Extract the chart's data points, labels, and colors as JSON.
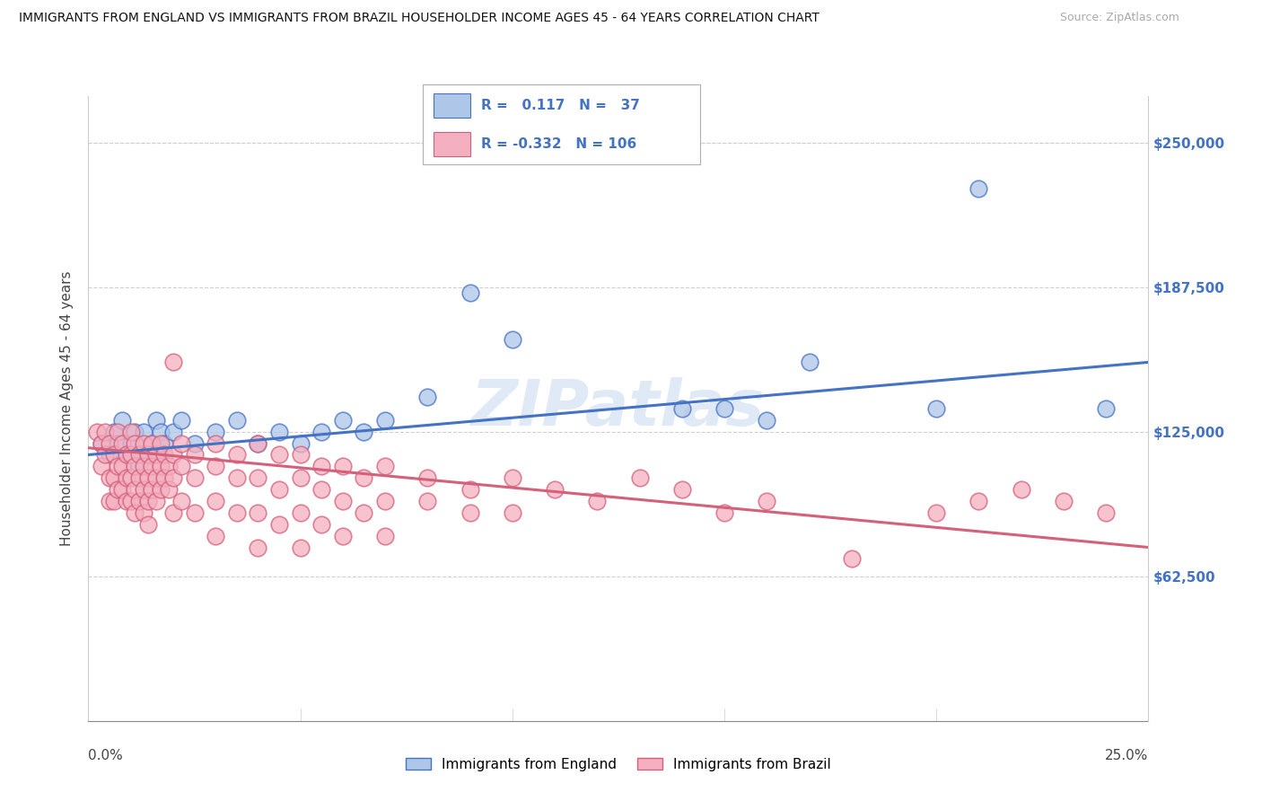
{
  "title": "IMMIGRANTS FROM ENGLAND VS IMMIGRANTS FROM BRAZIL HOUSEHOLDER INCOME AGES 45 - 64 YEARS CORRELATION CHART",
  "source": "Source: ZipAtlas.com",
  "ylabel": "Householder Income Ages 45 - 64 years",
  "yticks": [
    0,
    62500,
    125000,
    187500,
    250000
  ],
  "ytick_labels": [
    "",
    "$62,500",
    "$125,000",
    "$187,500",
    "$250,000"
  ],
  "xticks": [
    0.0,
    0.05,
    0.1,
    0.15,
    0.2,
    0.25
  ],
  "xlim": [
    0.0,
    0.25
  ],
  "ylim": [
    0,
    270000
  ],
  "england_R": 0.117,
  "england_N": 37,
  "brazil_R": -0.332,
  "brazil_N": 106,
  "england_color": "#aec6e8",
  "brazil_color": "#f4afc0",
  "england_line_color": "#4472c4",
  "brazil_line_color": "#d4607a",
  "england_scatter": [
    [
      0.003,
      120000
    ],
    [
      0.005,
      115000
    ],
    [
      0.006,
      125000
    ],
    [
      0.007,
      120000
    ],
    [
      0.008,
      130000
    ],
    [
      0.009,
      115000
    ],
    [
      0.01,
      120000
    ],
    [
      0.011,
      125000
    ],
    [
      0.012,
      110000
    ],
    [
      0.013,
      125000
    ],
    [
      0.014,
      115000
    ],
    [
      0.015,
      120000
    ],
    [
      0.016,
      130000
    ],
    [
      0.017,
      125000
    ],
    [
      0.018,
      120000
    ],
    [
      0.02,
      125000
    ],
    [
      0.022,
      130000
    ],
    [
      0.025,
      120000
    ],
    [
      0.03,
      125000
    ],
    [
      0.035,
      130000
    ],
    [
      0.04,
      120000
    ],
    [
      0.045,
      125000
    ],
    [
      0.05,
      120000
    ],
    [
      0.055,
      125000
    ],
    [
      0.06,
      130000
    ],
    [
      0.065,
      125000
    ],
    [
      0.07,
      130000
    ],
    [
      0.08,
      140000
    ],
    [
      0.09,
      185000
    ],
    [
      0.1,
      165000
    ],
    [
      0.14,
      135000
    ],
    [
      0.15,
      135000
    ],
    [
      0.16,
      130000
    ],
    [
      0.17,
      155000
    ],
    [
      0.2,
      135000
    ],
    [
      0.21,
      230000
    ],
    [
      0.24,
      135000
    ]
  ],
  "brazil_scatter": [
    [
      0.002,
      125000
    ],
    [
      0.003,
      120000
    ],
    [
      0.003,
      110000
    ],
    [
      0.004,
      125000
    ],
    [
      0.004,
      115000
    ],
    [
      0.005,
      120000
    ],
    [
      0.005,
      105000
    ],
    [
      0.005,
      95000
    ],
    [
      0.006,
      115000
    ],
    [
      0.006,
      105000
    ],
    [
      0.006,
      95000
    ],
    [
      0.007,
      125000
    ],
    [
      0.007,
      110000
    ],
    [
      0.007,
      100000
    ],
    [
      0.008,
      120000
    ],
    [
      0.008,
      110000
    ],
    [
      0.008,
      100000
    ],
    [
      0.009,
      115000
    ],
    [
      0.009,
      105000
    ],
    [
      0.009,
      95000
    ],
    [
      0.01,
      125000
    ],
    [
      0.01,
      115000
    ],
    [
      0.01,
      105000
    ],
    [
      0.01,
      95000
    ],
    [
      0.011,
      120000
    ],
    [
      0.011,
      110000
    ],
    [
      0.011,
      100000
    ],
    [
      0.011,
      90000
    ],
    [
      0.012,
      115000
    ],
    [
      0.012,
      105000
    ],
    [
      0.012,
      95000
    ],
    [
      0.013,
      120000
    ],
    [
      0.013,
      110000
    ],
    [
      0.013,
      100000
    ],
    [
      0.013,
      90000
    ],
    [
      0.014,
      115000
    ],
    [
      0.014,
      105000
    ],
    [
      0.014,
      95000
    ],
    [
      0.014,
      85000
    ],
    [
      0.015,
      120000
    ],
    [
      0.015,
      110000
    ],
    [
      0.015,
      100000
    ],
    [
      0.016,
      115000
    ],
    [
      0.016,
      105000
    ],
    [
      0.016,
      95000
    ],
    [
      0.017,
      120000
    ],
    [
      0.017,
      110000
    ],
    [
      0.017,
      100000
    ],
    [
      0.018,
      115000
    ],
    [
      0.018,
      105000
    ],
    [
      0.019,
      110000
    ],
    [
      0.019,
      100000
    ],
    [
      0.02,
      155000
    ],
    [
      0.02,
      115000
    ],
    [
      0.02,
      105000
    ],
    [
      0.02,
      90000
    ],
    [
      0.022,
      120000
    ],
    [
      0.022,
      110000
    ],
    [
      0.022,
      95000
    ],
    [
      0.025,
      115000
    ],
    [
      0.025,
      105000
    ],
    [
      0.025,
      90000
    ],
    [
      0.03,
      120000
    ],
    [
      0.03,
      110000
    ],
    [
      0.03,
      95000
    ],
    [
      0.03,
      80000
    ],
    [
      0.035,
      115000
    ],
    [
      0.035,
      105000
    ],
    [
      0.035,
      90000
    ],
    [
      0.04,
      120000
    ],
    [
      0.04,
      105000
    ],
    [
      0.04,
      90000
    ],
    [
      0.04,
      75000
    ],
    [
      0.045,
      115000
    ],
    [
      0.045,
      100000
    ],
    [
      0.045,
      85000
    ],
    [
      0.05,
      115000
    ],
    [
      0.05,
      105000
    ],
    [
      0.05,
      90000
    ],
    [
      0.05,
      75000
    ],
    [
      0.055,
      110000
    ],
    [
      0.055,
      100000
    ],
    [
      0.055,
      85000
    ],
    [
      0.06,
      110000
    ],
    [
      0.06,
      95000
    ],
    [
      0.06,
      80000
    ],
    [
      0.065,
      105000
    ],
    [
      0.065,
      90000
    ],
    [
      0.07,
      110000
    ],
    [
      0.07,
      95000
    ],
    [
      0.07,
      80000
    ],
    [
      0.08,
      105000
    ],
    [
      0.08,
      95000
    ],
    [
      0.09,
      100000
    ],
    [
      0.09,
      90000
    ],
    [
      0.1,
      105000
    ],
    [
      0.1,
      90000
    ],
    [
      0.11,
      100000
    ],
    [
      0.12,
      95000
    ],
    [
      0.13,
      105000
    ],
    [
      0.14,
      100000
    ],
    [
      0.15,
      90000
    ],
    [
      0.16,
      95000
    ],
    [
      0.18,
      70000
    ],
    [
      0.2,
      90000
    ],
    [
      0.21,
      95000
    ],
    [
      0.22,
      100000
    ],
    [
      0.23,
      95000
    ],
    [
      0.24,
      90000
    ]
  ],
  "watermark": "ZIPatlas",
  "background_color": "#ffffff",
  "grid_color": "#d0d0d0",
  "legend_text_color": "#4472c4"
}
